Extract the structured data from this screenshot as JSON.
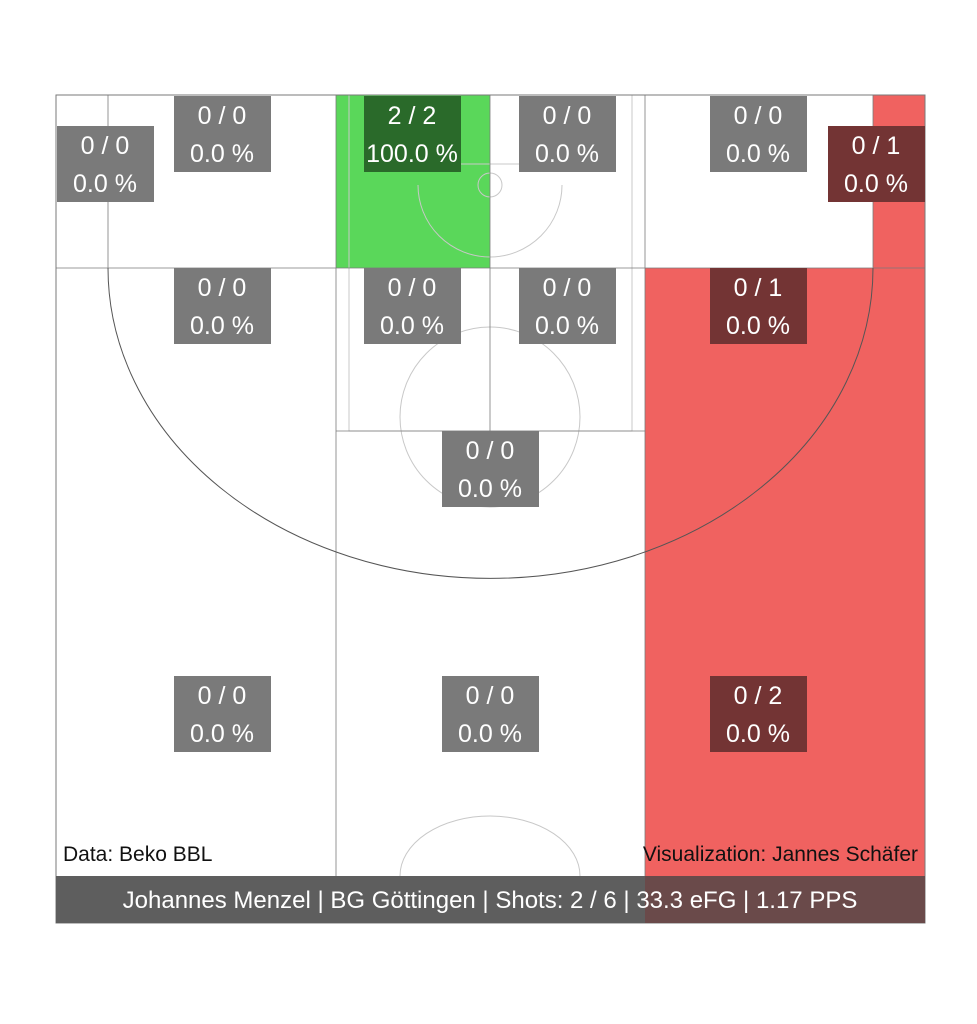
{
  "chart_data": {
    "type": "heatmap",
    "title": "",
    "colors": {
      "hot": "#f06260",
      "good": "#5ad75a",
      "label_box": "#7a7a7a",
      "label_box_on_hot": "#733434",
      "label_box_on_good": "#2a6a2a",
      "footer_bg": "#5e5e5e",
      "footer_bg_hot": "#6a4a4a",
      "court_lines": "#c8c8c8",
      "zone_lines": "#7a7a7a"
    },
    "zones": [
      {
        "id": "corner-left",
        "made": 0,
        "attempts": 0,
        "pct": "0.0 %",
        "heat": "none"
      },
      {
        "id": "baseline-left",
        "made": 0,
        "attempts": 0,
        "pct": "0.0 %",
        "heat": "none"
      },
      {
        "id": "paint-left-short",
        "made": 2,
        "attempts": 2,
        "pct": "100.0 %",
        "heat": "good"
      },
      {
        "id": "paint-right-short",
        "made": 0,
        "attempts": 0,
        "pct": "0.0 %",
        "heat": "none"
      },
      {
        "id": "baseline-right",
        "made": 0,
        "attempts": 0,
        "pct": "0.0 %",
        "heat": "none"
      },
      {
        "id": "corner-right",
        "made": 0,
        "attempts": 1,
        "pct": "0.0 %",
        "heat": "hot"
      },
      {
        "id": "wing-left-mid",
        "made": 0,
        "attempts": 0,
        "pct": "0.0 %",
        "heat": "none"
      },
      {
        "id": "paint-left-mid",
        "made": 0,
        "attempts": 0,
        "pct": "0.0 %",
        "heat": "none"
      },
      {
        "id": "paint-right-mid",
        "made": 0,
        "attempts": 0,
        "pct": "0.0 %",
        "heat": "none"
      },
      {
        "id": "wing-right-mid",
        "made": 0,
        "attempts": 1,
        "pct": "0.0 %",
        "heat": "hot"
      },
      {
        "id": "free-throw-top",
        "made": 0,
        "attempts": 0,
        "pct": "0.0 %",
        "heat": "none"
      },
      {
        "id": "three-left",
        "made": 0,
        "attempts": 0,
        "pct": "0.0 %",
        "heat": "none"
      },
      {
        "id": "three-center",
        "made": 0,
        "attempts": 0,
        "pct": "0.0 %",
        "heat": "none"
      },
      {
        "id": "three-right",
        "made": 0,
        "attempts": 2,
        "pct": "0.0 %",
        "heat": "hot"
      }
    ],
    "credits": {
      "data": "Data: Beko BBL",
      "visualization": "Visualization: Jannes Schäfer"
    },
    "footer": "Johannes Menzel | BG Göttingen | Shots: 2 / 6 | 33.3 eFG | 1.17 PPS"
  }
}
